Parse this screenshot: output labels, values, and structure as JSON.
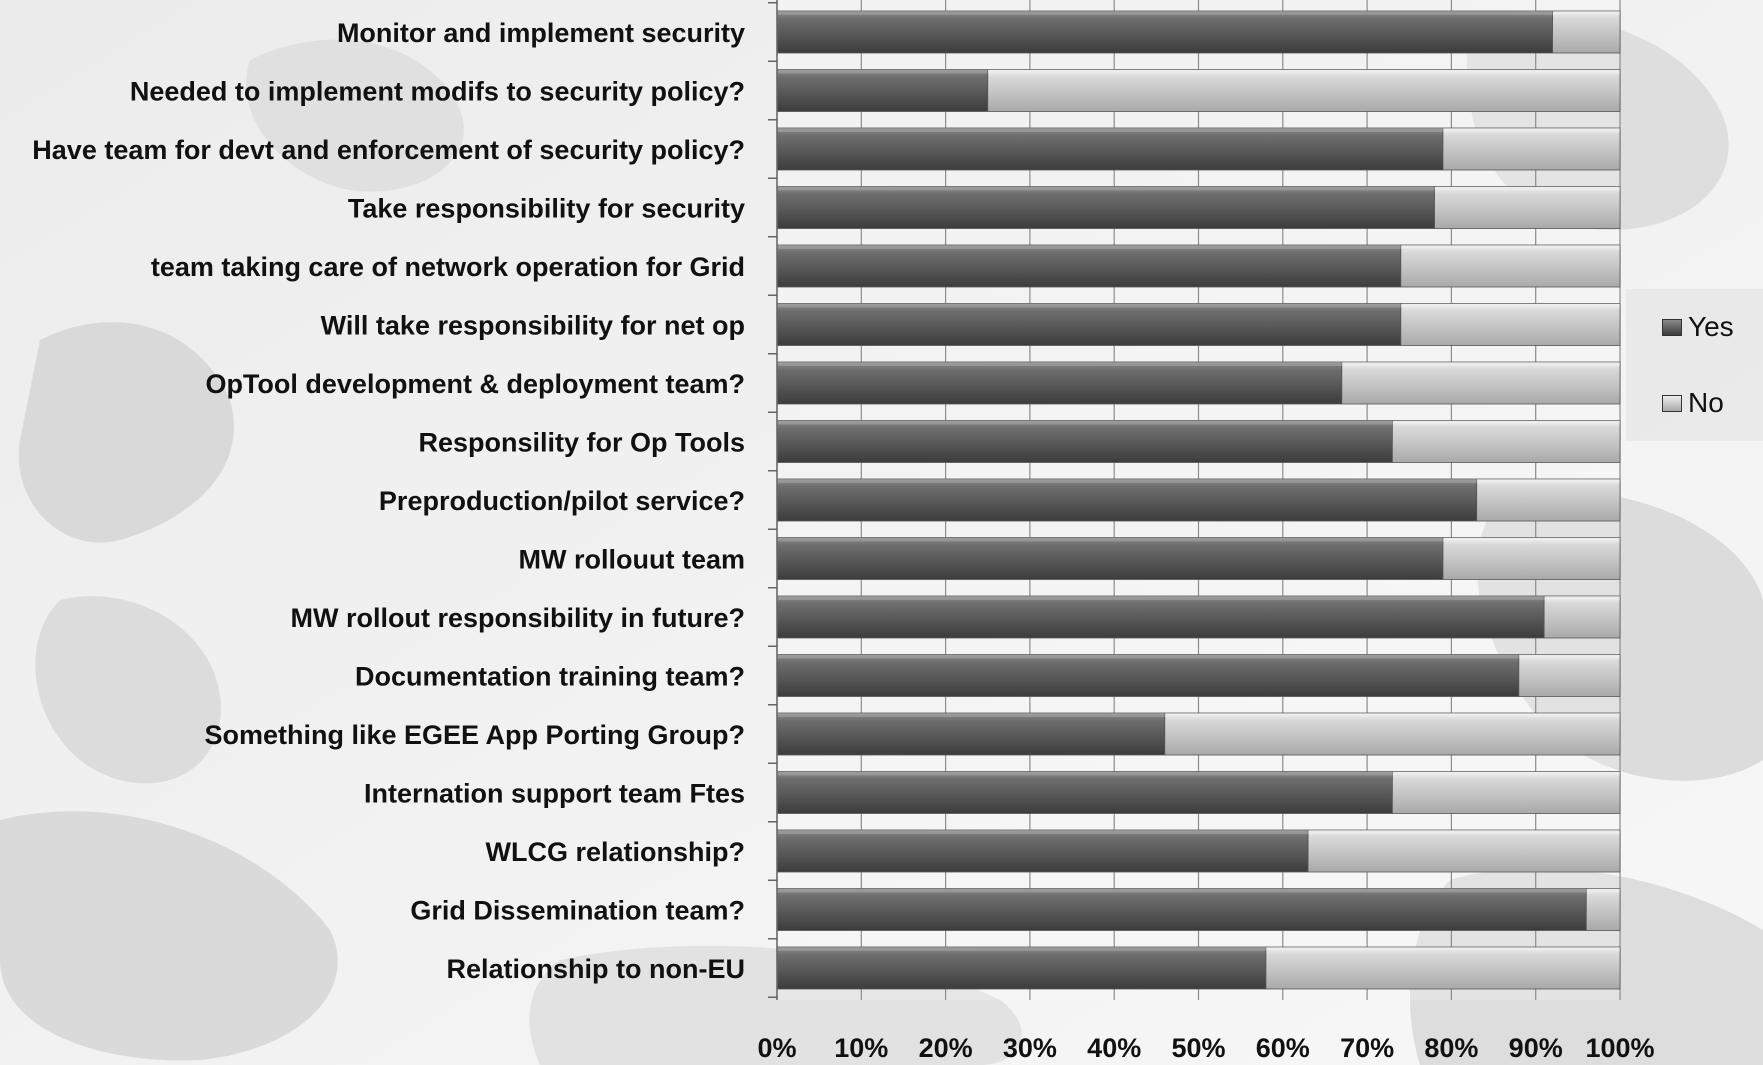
{
  "chart_data": {
    "type": "bar",
    "orientation": "horizontal",
    "stacked": "percent",
    "categories": [
      "Monitor and implement security",
      "Needed to implement modifs to security policy?",
      "Have team for devt and enforcement of security policy?",
      "Take responsibility for security",
      "team taking care of network operation for Grid",
      "Will take responsibility for net op",
      "OpTool development & deployment team?",
      "Responsility for Op Tools",
      "Preproduction/pilot service?",
      "MW rollouut team",
      "MW rollout responsibility in future?",
      "Documentation training team?",
      "Something like EGEE App Porting Group?",
      "Internation  support team Ftes",
      "WLCG relationship?",
      "Grid Dissemination team?",
      "Relationship to non-EU"
    ],
    "series": [
      {
        "name": "Yes",
        "color": "#5c5c5c",
        "values": [
          92,
          25,
          79,
          78,
          74,
          74,
          67,
          73,
          83,
          79,
          91,
          88,
          46,
          73,
          63,
          96,
          58
        ]
      },
      {
        "name": "No",
        "color": "#c8c8c8",
        "values": [
          8,
          75,
          21,
          22,
          26,
          26,
          33,
          27,
          17,
          21,
          9,
          12,
          54,
          27,
          37,
          4,
          42
        ]
      }
    ],
    "xticks": [
      "0%",
      "10%",
      "20%",
      "30%",
      "40%",
      "50%",
      "60%",
      "70%",
      "80%",
      "90%",
      "100%"
    ],
    "xlim": [
      0,
      100
    ],
    "grid": true,
    "legend_position": "right"
  }
}
